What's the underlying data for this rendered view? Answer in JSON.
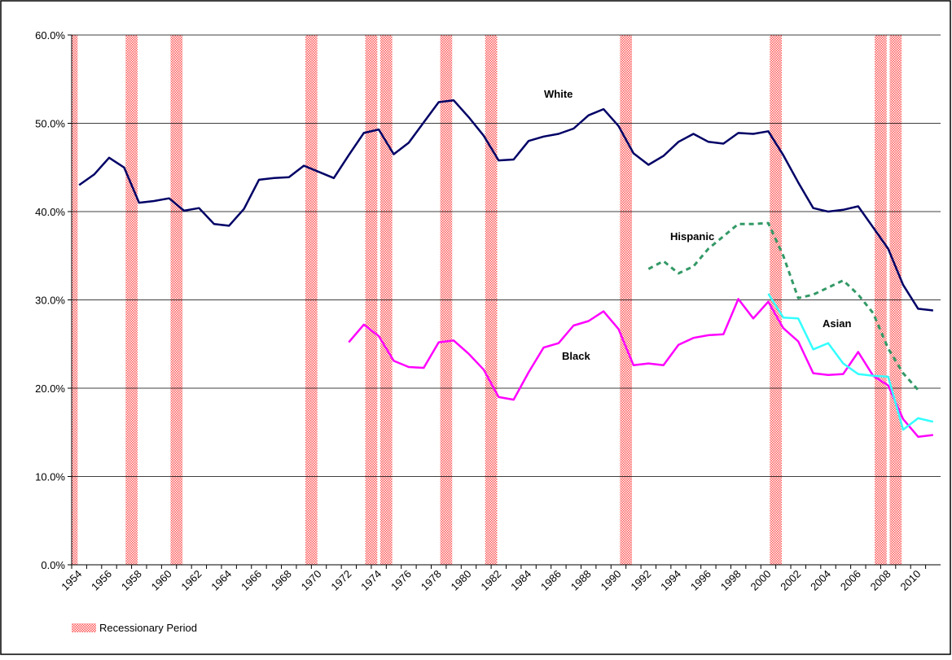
{
  "chart_data": {
    "type": "line",
    "categories": [
      "1954",
      null,
      "1956",
      null,
      "1958",
      null,
      "1960",
      null,
      "1962",
      null,
      "1964",
      null,
      "1966",
      null,
      "1968",
      null,
      "1970",
      null,
      "1972",
      null,
      "1974",
      null,
      "1976",
      null,
      "1978",
      null,
      "1980",
      null,
      "1982",
      null,
      "1984",
      null,
      "1986",
      null,
      "1988",
      null,
      "1990",
      null,
      "1992",
      null,
      "1994",
      null,
      "1996",
      null,
      "1998",
      null,
      "2000",
      null,
      "2002",
      null,
      "2004",
      null,
      "2006",
      null,
      "2008",
      null,
      "2010",
      null
    ],
    "series": [
      {
        "name": "White",
        "color": "#000066",
        "values": [
          43.0,
          44.2,
          46.1,
          45.0,
          41.0,
          41.2,
          41.5,
          40.1,
          40.4,
          38.6,
          38.4,
          40.3,
          43.6,
          43.8,
          43.9,
          45.2,
          44.5,
          43.8,
          46.4,
          48.9,
          49.3,
          46.5,
          47.8,
          50.1,
          52.4,
          52.6,
          50.7,
          48.6,
          45.8,
          45.9,
          48.0,
          48.5,
          48.8,
          49.4,
          50.9,
          51.6,
          49.7,
          46.6,
          45.3,
          46.3,
          47.9,
          48.8,
          47.9,
          47.7,
          48.9,
          48.8,
          49.1,
          46.4,
          43.3,
          40.4,
          40.0,
          40.2,
          40.6,
          38.2,
          35.8,
          31.7,
          29.0,
          28.8
        ]
      },
      {
        "name": "Black",
        "color": "#ff00ff",
        "values": [
          null,
          null,
          null,
          null,
          null,
          null,
          null,
          null,
          null,
          null,
          null,
          null,
          null,
          null,
          null,
          null,
          null,
          null,
          25.2,
          27.2,
          25.9,
          23.1,
          22.4,
          22.3,
          25.2,
          25.4,
          23.9,
          22.1,
          19.0,
          18.7,
          21.8,
          24.6,
          25.1,
          27.1,
          27.6,
          28.7,
          26.7,
          22.6,
          22.8,
          22.6,
          24.9,
          25.7,
          26.0,
          26.1,
          30.1,
          27.9,
          29.8,
          26.8,
          25.3,
          21.7,
          21.5,
          21.6,
          24.1,
          21.4,
          20.3,
          16.5,
          14.5,
          14.7
        ]
      },
      {
        "name": "Hispanic",
        "color": "#339966",
        "dashed": true,
        "values": [
          null,
          null,
          null,
          null,
          null,
          null,
          null,
          null,
          null,
          null,
          null,
          null,
          null,
          null,
          null,
          null,
          null,
          null,
          null,
          null,
          null,
          null,
          null,
          null,
          null,
          null,
          null,
          null,
          null,
          null,
          null,
          null,
          null,
          null,
          null,
          null,
          null,
          null,
          33.5,
          34.4,
          33.0,
          33.8,
          35.8,
          37.2,
          38.6,
          38.6,
          38.7,
          35.0,
          30.2,
          30.6,
          31.4,
          32.2,
          30.6,
          28.5,
          24.5,
          21.7,
          19.8,
          null
        ]
      },
      {
        "name": "Asian",
        "color": "#33ffff",
        "values": [
          null,
          null,
          null,
          null,
          null,
          null,
          null,
          null,
          null,
          null,
          null,
          null,
          null,
          null,
          null,
          null,
          null,
          null,
          null,
          null,
          null,
          null,
          null,
          null,
          null,
          null,
          null,
          null,
          null,
          null,
          null,
          null,
          null,
          null,
          null,
          null,
          null,
          null,
          null,
          null,
          null,
          null,
          null,
          null,
          null,
          null,
          30.7,
          28.0,
          27.9,
          24.4,
          25.1,
          22.8,
          21.6,
          21.4,
          21.3,
          15.3,
          16.6,
          16.2
        ]
      },
      {
        "name": "Recessionary Period",
        "type": "bar",
        "color": "#ff5555",
        "values": [
          60,
          null,
          null,
          null,
          60,
          null,
          null,
          60,
          null,
          null,
          null,
          null,
          null,
          null,
          null,
          null,
          60,
          null,
          null,
          null,
          60,
          60,
          null,
          null,
          null,
          60,
          null,
          null,
          60,
          null,
          null,
          null,
          null,
          null,
          null,
          null,
          null,
          60,
          null,
          null,
          null,
          null,
          null,
          null,
          null,
          null,
          null,
          60,
          null,
          null,
          null,
          null,
          null,
          null,
          60,
          60,
          null,
          null
        ]
      }
    ],
    "ylim": [
      0,
      60
    ],
    "yticks": [
      {
        "value": 0,
        "label": "0.0%"
      },
      {
        "value": 10,
        "label": "10.0%"
      },
      {
        "value": 20,
        "label": "20.0%"
      },
      {
        "value": 30,
        "label": "30.0%"
      },
      {
        "value": 40,
        "label": "40.0%"
      },
      {
        "value": 50,
        "label": "50.0%"
      },
      {
        "value": 60,
        "label": "60.0%"
      }
    ],
    "grid": true,
    "legend": "bottom-left"
  }
}
